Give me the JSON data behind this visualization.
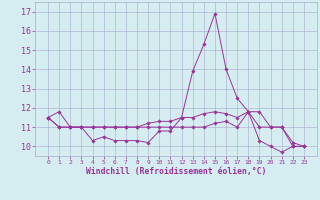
{
  "xlabel": "Windchill (Refroidissement éolien,°C)",
  "x": [
    0,
    1,
    2,
    3,
    4,
    5,
    6,
    7,
    8,
    9,
    10,
    11,
    12,
    13,
    14,
    15,
    16,
    17,
    18,
    19,
    20,
    21,
    22,
    23
  ],
  "series1": [
    11.5,
    11.8,
    11.0,
    11.0,
    10.3,
    10.5,
    10.3,
    10.3,
    10.3,
    10.2,
    10.8,
    10.8,
    11.5,
    13.9,
    15.3,
    16.9,
    14.0,
    12.5,
    11.8,
    10.3,
    10.0,
    9.7,
    10.0,
    10.0
  ],
  "series2": [
    11.5,
    11.0,
    11.0,
    11.0,
    11.0,
    11.0,
    11.0,
    11.0,
    11.0,
    11.2,
    11.3,
    11.3,
    11.5,
    11.5,
    11.7,
    11.8,
    11.7,
    11.5,
    11.8,
    11.0,
    11.0,
    11.0,
    10.0,
    10.0
  ],
  "series3": [
    11.5,
    11.0,
    11.0,
    11.0,
    11.0,
    11.0,
    11.0,
    11.0,
    11.0,
    11.0,
    11.0,
    11.0,
    11.0,
    11.0,
    11.0,
    11.2,
    11.3,
    11.0,
    11.8,
    11.8,
    11.0,
    11.0,
    10.2,
    10.0
  ],
  "line_color": "#993399",
  "bg_color": "#d5edf0",
  "grid_color": "#aaaacc",
  "ylim": [
    9.5,
    17.5
  ],
  "yticks": [
    10,
    11,
    12,
    13,
    14,
    15,
    16,
    17
  ],
  "font_color": "#993399",
  "marker": "D",
  "markersize": 1.8,
  "linewidth": 0.7
}
